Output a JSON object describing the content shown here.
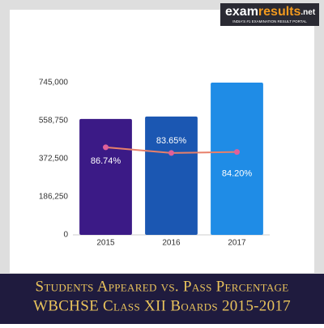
{
  "brand": {
    "parts": [
      "exam",
      "results",
      ".net"
    ],
    "tagline": "INDIA'S #1 EXAMINATION RESULT PORTAL"
  },
  "chart_data": {
    "type": "bar",
    "title": "Students Appeared vs. Pass Percentage",
    "subtitle": "WBCHSE Class XII Boards 2015-2017",
    "categories": [
      "2015",
      "2016",
      "2017"
    ],
    "series": [
      {
        "type": "bar",
        "colors": [
          "#3b1a86",
          "#1b57b2",
          "#1f8ce6"
        ],
        "values": [
          567000,
          579000,
          745000
        ]
      },
      {
        "type": "line",
        "axis": "y2",
        "color": "#e8806a",
        "marker_color": "#e0609a",
        "values": [
          86.74,
          83.65,
          84.2
        ],
        "value_labels": [
          "86.74%",
          "83.65%",
          "84.20%"
        ]
      }
    ],
    "ylim": [
      0,
      745000
    ],
    "yticks": [
      0,
      {
        "value": 186250,
        "label": "186,250"
      },
      {
        "value": 372500,
        "label": "372,500"
      },
      {
        "value": 558750,
        "label": "558,750"
      },
      {
        "value": 745000,
        "label": "745,000"
      }
    ],
    "y2lim": [
      39,
      122
    ],
    "grid": false
  }
}
